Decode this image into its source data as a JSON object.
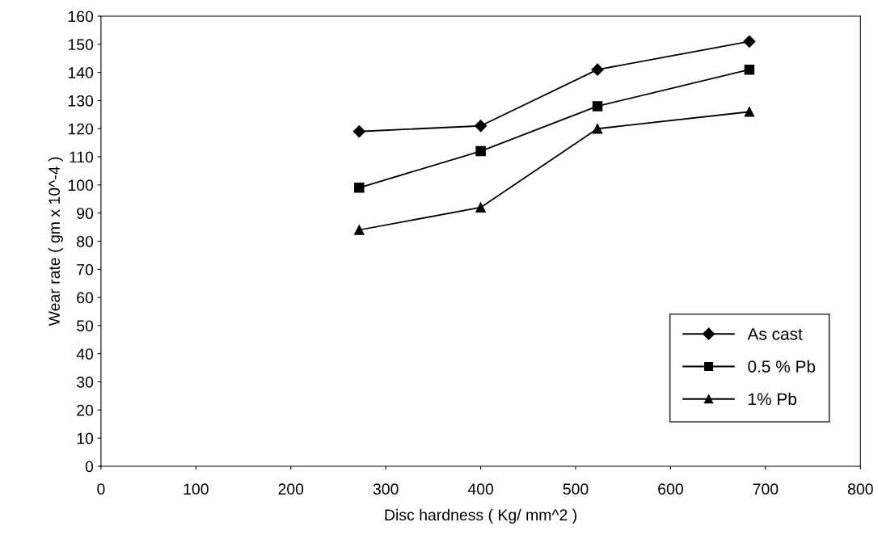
{
  "chart_data": {
    "type": "line",
    "xlabel": "Disc hardness ( Kg/ mm^2 )",
    "ylabel": "Wear rate ( gm x 10^-4 )",
    "x": [
      272,
      400,
      523,
      683
    ],
    "series": [
      {
        "name": "As cast",
        "color": "#000000",
        "marker": "diamond",
        "values": [
          119,
          121,
          141,
          151
        ]
      },
      {
        "name": "0.5 % Pb",
        "color": "#000000",
        "marker": "square",
        "values": [
          99,
          112,
          128,
          141
        ]
      },
      {
        "name": "1% Pb",
        "color": "#000000",
        "marker": "triangle",
        "values": [
          84,
          92,
          120,
          126
        ]
      }
    ],
    "xlim": [
      0,
      800
    ],
    "xticks": [
      0,
      100,
      200,
      300,
      400,
      500,
      600,
      700,
      800
    ],
    "ylim": [
      0,
      160
    ],
    "yticks": [
      0,
      10,
      20,
      30,
      40,
      50,
      60,
      70,
      80,
      90,
      100,
      110,
      120,
      130,
      140,
      150,
      160
    ],
    "grid": false,
    "legend": "bottom right",
    "line_style": "solid"
  }
}
